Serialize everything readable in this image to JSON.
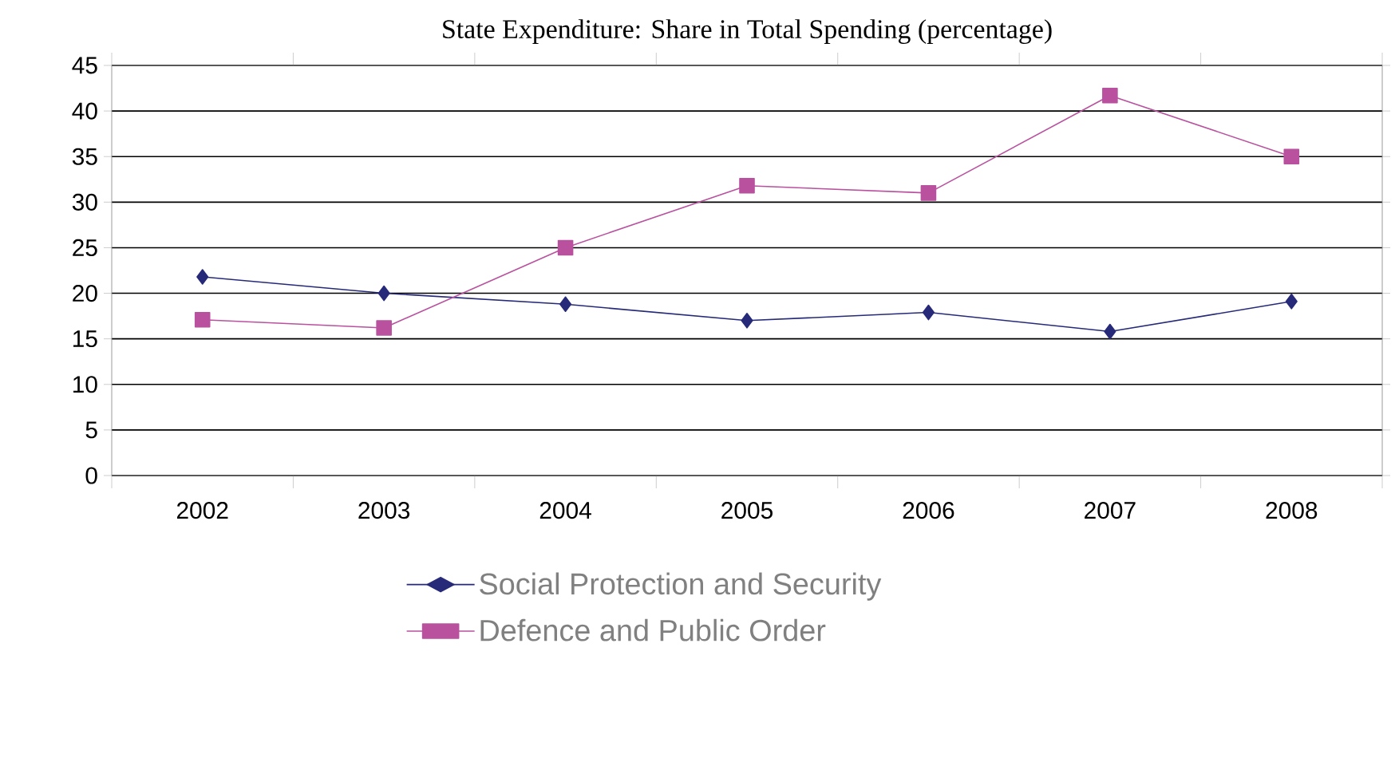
{
  "chart_data": {
    "type": "line",
    "title": "State Expenditure: Share in Total Spending (percentage)",
    "categories": [
      "2002",
      "2003",
      "2004",
      "2005",
      "2006",
      "2007",
      "2008"
    ],
    "series": [
      {
        "name": "Social Protection and Security",
        "color": "#262a78",
        "marker": "diamond",
        "values": [
          21.8,
          20.0,
          18.8,
          17.0,
          17.9,
          15.8,
          19.1
        ]
      },
      {
        "name": "Defence and Public Order",
        "color": "#b9519f",
        "marker": "square",
        "values": [
          17.1,
          16.2,
          25.0,
          31.8,
          31.0,
          41.7,
          35.0
        ]
      }
    ],
    "ylim": [
      0,
      45
    ],
    "yticks": [
      0,
      5,
      10,
      15,
      20,
      25,
      30,
      35,
      40,
      45
    ],
    "grid": "y",
    "legend": "bottom",
    "line_style": "solid"
  }
}
